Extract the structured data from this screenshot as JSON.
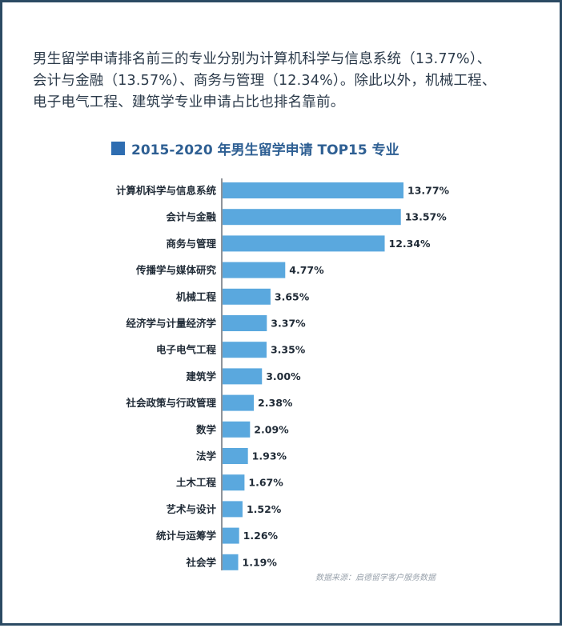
{
  "intro": {
    "line1": "男生留学申请排名前三的专业分别为计算机科学与信息系统（13.77%）、",
    "line2": "会计与金融（13.57%）、商务与管理（12.34%）。除此以外，机械工程、",
    "line3": "电子电气工程、建筑学专业申请占比也排名靠前。"
  },
  "chart_data": {
    "type": "bar",
    "orientation": "horizontal",
    "title": "2015-2020 年男生留学申请 TOP15 专业",
    "categories": [
      "计算机科学与信息系统",
      "会计与金融",
      "商务与管理",
      "传播学与媒体研究",
      "机械工程",
      "经济学与计量经济学",
      "电子电气工程",
      "建筑学",
      "社会政策与行政管理",
      "数学",
      "法学",
      "土木工程",
      "艺术与设计",
      "统计与运筹学",
      "社会学"
    ],
    "values": [
      13.77,
      13.57,
      12.34,
      4.77,
      3.65,
      3.37,
      3.35,
      3.0,
      2.38,
      2.09,
      1.93,
      1.67,
      1.52,
      1.26,
      1.19
    ],
    "value_labels": [
      "13.77%",
      "13.57%",
      "12.34%",
      "4.77%",
      "3.65%",
      "3.37%",
      "3.35%",
      "3.00%",
      "2.38%",
      "2.09%",
      "1.93%",
      "1.67%",
      "1.52%",
      "1.26%",
      "1.19%"
    ],
    "unit": "%",
    "xlim": [
      0,
      13.77
    ],
    "grid": false,
    "bar_color": "#5aa8de",
    "title_color": "#2e5f93"
  },
  "source": "数据来源：启德留学客户服务数据"
}
